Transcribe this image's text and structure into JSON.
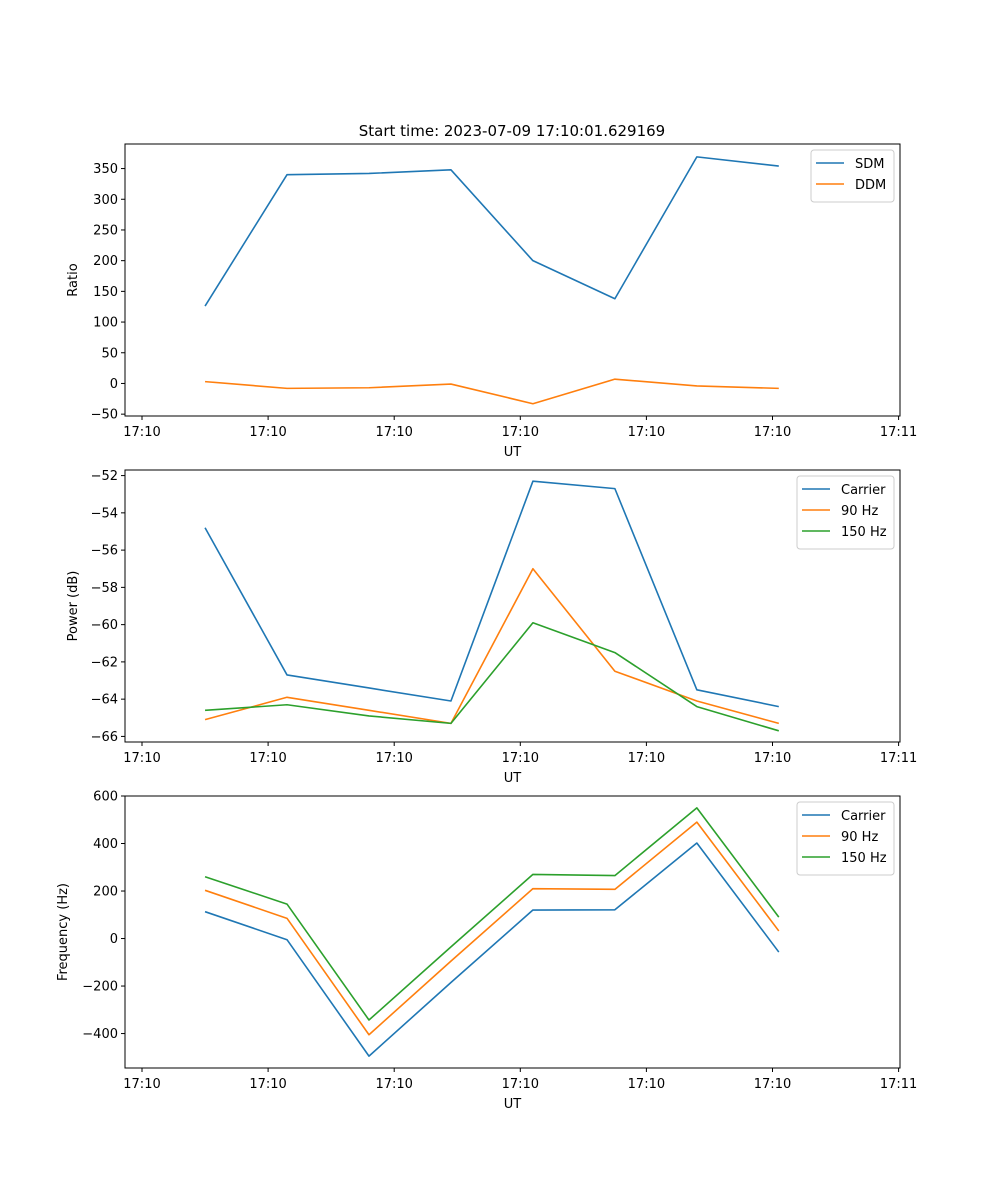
{
  "title": "Start time: 2023-07-09 17:10:01.629169",
  "colors": {
    "blue": "#1f77b4",
    "orange": "#ff7f0e",
    "green": "#2ca02c"
  },
  "chart_data": [
    {
      "type": "line",
      "title": "Start time: 2023-07-09 17:10:01.629169",
      "xlabel": "UT",
      "ylabel": "Ratio",
      "xlim": [
        0,
        6
      ],
      "x": [
        0.5,
        1.15,
        1.8,
        2.45,
        3.1,
        3.75,
        4.4,
        5.05
      ],
      "xticks": [
        0,
        1,
        2,
        3,
        4,
        5,
        6
      ],
      "xtick_labels": [
        "17:10",
        "17:10",
        "17:10",
        "17:10",
        "17:10",
        "17:10",
        "17:11"
      ],
      "ylim": [
        -53,
        390
      ],
      "yticks": [
        -50,
        0,
        50,
        100,
        150,
        200,
        250,
        300,
        350
      ],
      "legend_position": "top-right",
      "series": [
        {
          "name": "SDM",
          "color": "#1f77b4",
          "values": [
            126,
            340,
            342,
            348,
            200,
            138,
            369,
            354
          ]
        },
        {
          "name": "DDM",
          "color": "#ff7f0e",
          "values": [
            3,
            -8,
            -7,
            -1,
            -33,
            7,
            -4,
            -8
          ]
        }
      ]
    },
    {
      "type": "line",
      "title": "",
      "xlabel": "UT",
      "ylabel": "Power (dB)",
      "xlim": [
        0,
        6
      ],
      "x": [
        0.5,
        1.15,
        1.8,
        2.45,
        3.1,
        3.75,
        4.4,
        5.05
      ],
      "xticks": [
        0,
        1,
        2,
        3,
        4,
        5,
        6
      ],
      "xtick_labels": [
        "17:10",
        "17:10",
        "17:10",
        "17:10",
        "17:10",
        "17:10",
        "17:11"
      ],
      "ylim": [
        -66.3,
        -51.7
      ],
      "yticks": [
        -66,
        -64,
        -62,
        -60,
        -58,
        -56,
        -54,
        -52
      ],
      "legend_position": "top-right",
      "series": [
        {
          "name": "Carrier",
          "color": "#1f77b4",
          "values": [
            -54.8,
            -62.7,
            -63.4,
            -64.1,
            -52.3,
            -52.7,
            -63.5,
            -64.4
          ]
        },
        {
          "name": "90 Hz",
          "color": "#ff7f0e",
          "values": [
            -65.1,
            -63.9,
            -64.6,
            -65.3,
            -57.0,
            -62.5,
            -64.1,
            -65.3
          ]
        },
        {
          "name": "150 Hz",
          "color": "#2ca02c",
          "values": [
            -64.6,
            -64.3,
            -64.9,
            -65.3,
            -59.9,
            -61.5,
            -64.4,
            -65.7
          ]
        }
      ]
    },
    {
      "type": "line",
      "title": "",
      "xlabel": "UT",
      "ylabel": "Frequency (Hz)",
      "xlim": [
        0,
        6
      ],
      "x": [
        0.5,
        1.15,
        1.8,
        2.45,
        3.1,
        3.75,
        4.4,
        5.05
      ],
      "xticks": [
        0,
        1,
        2,
        3,
        4,
        5,
        6
      ],
      "xtick_labels": [
        "17:10",
        "17:10",
        "17:10",
        "17:10",
        "17:10",
        "17:10",
        "17:11"
      ],
      "ylim": [
        -545,
        600
      ],
      "yticks": [
        -400,
        -200,
        0,
        200,
        400,
        600
      ],
      "legend_position": "top-right",
      "series": [
        {
          "name": "Carrier",
          "color": "#1f77b4",
          "values": [
            113,
            -5,
            -495,
            -185,
            120,
            121,
            402,
            -57
          ]
        },
        {
          "name": "90 Hz",
          "color": "#ff7f0e",
          "values": [
            203,
            85,
            -405,
            -95,
            210,
            207,
            490,
            32
          ]
        },
        {
          "name": "150 Hz",
          "color": "#2ca02c",
          "values": [
            260,
            145,
            -343,
            -35,
            270,
            265,
            550,
            90
          ]
        }
      ]
    }
  ]
}
